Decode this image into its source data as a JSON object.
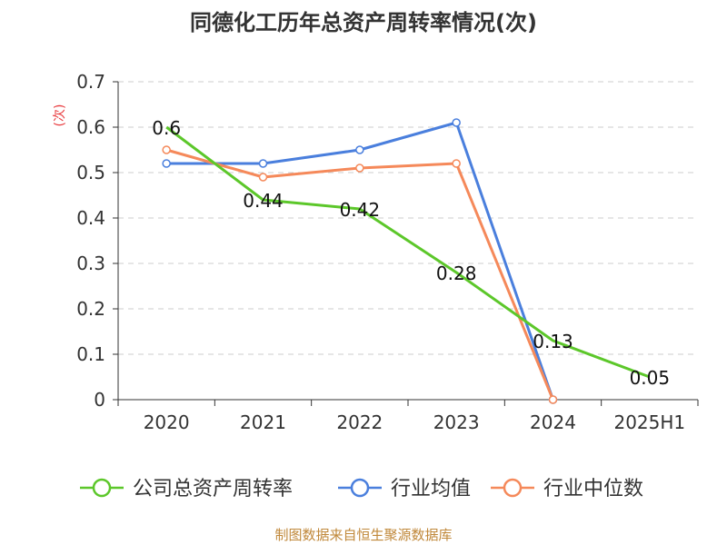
{
  "chart_data": {
    "type": "line",
    "title": "同德化工历年总资产周转率情况(次)",
    "ylabel": "(次)",
    "xlabel": "",
    "categories": [
      "2020",
      "2021",
      "2022",
      "2023",
      "2024",
      "2025H1"
    ],
    "ylim": [
      0,
      0.7
    ],
    "yticks": [
      "0",
      "0.1",
      "0.2",
      "0.3",
      "0.4",
      "0.5",
      "0.6",
      "0.7"
    ],
    "grid": true,
    "legend_position": "bottom",
    "series": [
      {
        "name": "公司总资产周转率",
        "color": "#5cc72a",
        "values": [
          0.6,
          0.44,
          0.42,
          0.28,
          0.13,
          0.05
        ],
        "labels": [
          "0.6",
          "0.44",
          "0.42",
          "0.28",
          "0.13",
          "0.05"
        ]
      },
      {
        "name": "行业均值",
        "color": "#4a7fdd",
        "values": [
          0.52,
          0.52,
          0.55,
          0.61,
          0.0,
          null
        ]
      },
      {
        "name": "行业中位数",
        "color": "#f5895a",
        "values": [
          0.55,
          0.49,
          0.51,
          0.52,
          0.0,
          null
        ]
      }
    ],
    "source": "制图数据来自恒生聚源数据库"
  }
}
